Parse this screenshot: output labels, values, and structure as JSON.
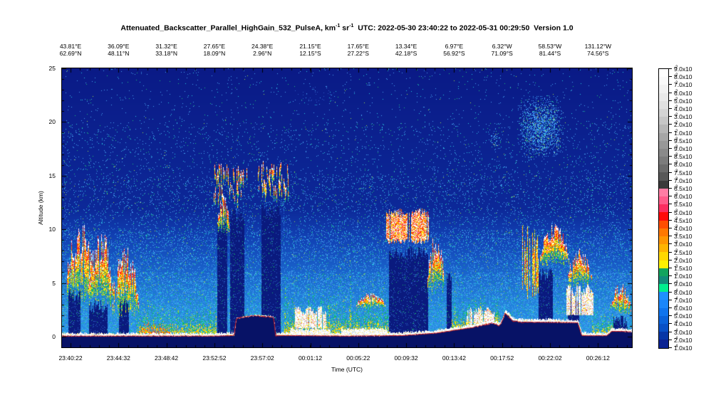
{
  "header": {
    "product": "Attenuated_Backscatter_Parallel_HighGain_532_PulseA, km",
    "exp1": "-1",
    "unit2": " sr",
    "exp2": "-1",
    "range": "  UTC: 2022-05-30 23:40:22 to 2022-05-31 00:29:50  Version 1.0"
  },
  "chart_data": {
    "type": "heatmap",
    "title": "Attenuated_Backscatter_Parallel_HighGain_532_PulseA, km-1 sr-1",
    "utc_range": "UTC: 2022-05-30 23:40:22 to 2022-05-31 00:29:50",
    "version": "Version 1.0",
    "xlabel": "Time (UTC)",
    "ylabel": "Altitude (km)",
    "alt_range_km": [
      -1,
      25
    ],
    "y_ticks": [
      0,
      5,
      10,
      15,
      20,
      25
    ],
    "x_ticks": [
      "23:40:22",
      "23:44:32",
      "23:48:42",
      "23:52:52",
      "23:57:02",
      "00:01:12",
      "00:05:22",
      "00:09:32",
      "00:13:42",
      "00:17:52",
      "00:22:02",
      "00:26:12"
    ],
    "top_axis": {
      "lon": [
        "43.81°E",
        "36.09°E",
        "31.32°E",
        "27.65°E",
        "24.38°E",
        "21.15°E",
        "17.65°E",
        "13.34°E",
        "6.97°E",
        "6.32°W",
        "58.53°W",
        "131.12°W"
      ],
      "lat": [
        "62.69°N",
        "48.11°N",
        "33.18°N",
        "18.09°N",
        "2.96°N",
        "12.15°S",
        "27.22°S",
        "42.18°S",
        "56.92°S",
        "71.09°S",
        "81.44°S",
        "74.56°S"
      ]
    },
    "colorbar": {
      "labels": [
        [
          "9.0x10",
          "-2"
        ],
        [
          "8.0x10",
          "-2"
        ],
        [
          "7.0x10",
          "-2"
        ],
        [
          "6.0x10",
          "-2"
        ],
        [
          "5.0x10",
          "-2"
        ],
        [
          "4.0x10",
          "-2"
        ],
        [
          "3.0x10",
          "-2"
        ],
        [
          "2.0x10",
          "-2"
        ],
        [
          "1.0x10",
          "-2"
        ],
        [
          "9.5x10",
          "-3"
        ],
        [
          "9.0x10",
          "-3"
        ],
        [
          "8.5x10",
          "-3"
        ],
        [
          "8.0x10",
          "-3"
        ],
        [
          "7.5x10",
          "-3"
        ],
        [
          "7.0x10",
          "-3"
        ],
        [
          "6.5x10",
          "-3"
        ],
        [
          "6.0x10",
          "-3"
        ],
        [
          "5.5x10",
          "-3"
        ],
        [
          "5.0x10",
          "-3"
        ],
        [
          "4.5x10",
          "-3"
        ],
        [
          "4.0x10",
          "-3"
        ],
        [
          "3.5x10",
          "-3"
        ],
        [
          "3.0x10",
          "-3"
        ],
        [
          "2.5x10",
          "-3"
        ],
        [
          "2.0x10",
          "-3"
        ],
        [
          "1.5x10",
          "-3"
        ],
        [
          "1.0x10",
          "-3"
        ],
        [
          "9.0x10",
          "-4"
        ],
        [
          "8.0x10",
          "-4"
        ],
        [
          "7.0x10",
          "-4"
        ],
        [
          "6.0x10",
          "-4"
        ],
        [
          "5.0x10",
          "-4"
        ],
        [
          "4.0x10",
          "-4"
        ],
        [
          "3.0x10",
          "-4"
        ],
        [
          "2.0x10",
          "-4"
        ],
        [
          "1.0x10",
          "-4"
        ]
      ],
      "colors": [
        "#ffffff",
        "#fafafa",
        "#f2f2f2",
        "#eaeaea",
        "#e0e0e0",
        "#d4d4d4",
        "#c6c6c6",
        "#b6b6b6",
        "#a6a6a6",
        "#989898",
        "#8a8a8a",
        "#7c7c7c",
        "#6c6c6c",
        "#585858",
        "#3a3a3a",
        "#ff7da4",
        "#ff5c8a",
        "#fb2e60",
        "#ff0a0a",
        "#ff4e00",
        "#ff7800",
        "#ff9600",
        "#ffb400",
        "#ffd800",
        "#fff200",
        "#12a45e",
        "#128c7a",
        "#00ee8e",
        "#1e90ff",
        "#1a86fa",
        "#0f74ee",
        "#0a62da",
        "#0850c6",
        "#0636a6",
        "#0a2292"
      ]
    },
    "background_stops": [
      [
        25,
        "#0a1a86"
      ],
      [
        12,
        "#0c2898"
      ],
      [
        9,
        "#1244b6"
      ],
      [
        6,
        "#1a64cc"
      ],
      [
        3,
        "#2282dc"
      ],
      [
        0,
        "#2a92e6"
      ],
      [
        -1,
        "#2a92e6"
      ]
    ],
    "features": [
      {
        "kind": "faint",
        "x": [
          0.4,
          0.5
        ],
        "alt": [
          21.5,
          23.5
        ]
      },
      {
        "kind": "psc",
        "x": [
          0.748,
          0.772
        ],
        "alt": [
          17.3,
          19.6
        ],
        "faint": true
      },
      {
        "kind": "psc",
        "x": [
          0.798,
          0.882
        ],
        "alt": [
          16.5,
          22.6
        ]
      },
      {
        "kind": "cell",
        "x": [
          0.006,
          0.062
        ],
        "alt": [
          3.2,
          10.8
        ]
      },
      {
        "kind": "cell",
        "x": [
          0.045,
          0.09
        ],
        "alt": [
          2.8,
          10.4
        ]
      },
      {
        "kind": "cell",
        "x": [
          0.088,
          0.135
        ],
        "alt": [
          1.8,
          8.6
        ]
      },
      {
        "kind": "aerosol",
        "x": [
          0.132,
          0.272
        ],
        "alt": [
          0.0,
          3.2
        ],
        "hot": [
          0.135,
          0.19
        ]
      },
      {
        "kind": "cirrus",
        "x": [
          0.266,
          0.326
        ],
        "alt": [
          12.2,
          16.3
        ]
      },
      {
        "kind": "cell",
        "x": [
          0.272,
          0.295
        ],
        "alt": [
          9.6,
          13.2
        ]
      },
      {
        "kind": "cirrus",
        "x": [
          0.344,
          0.397
        ],
        "alt": [
          12.8,
          16.4
        ]
      },
      {
        "kind": "aerosol",
        "x": [
          0.39,
          0.575
        ],
        "alt": [
          0.0,
          4.2
        ]
      },
      {
        "kind": "lowwhite",
        "x": [
          0.408,
          0.463
        ],
        "alt": [
          0.8,
          2.8
        ]
      },
      {
        "kind": "cell",
        "x": [
          0.515,
          0.568
        ],
        "alt": [
          2.6,
          4.1
        ]
      },
      {
        "kind": "convective",
        "x": [
          0.57,
          0.643
        ],
        "alt": [
          8.6,
          11.9
        ]
      },
      {
        "kind": "cell",
        "x": [
          0.641,
          0.672
        ],
        "alt": [
          4.0,
          9.6
        ]
      },
      {
        "kind": "aerosol",
        "x": [
          0.675,
          0.77
        ],
        "alt": [
          0.0,
          4.0
        ]
      },
      {
        "kind": "lowwhite",
        "x": [
          0.71,
          0.758
        ],
        "alt": [
          0.5,
          2.7
        ]
      },
      {
        "kind": "towers",
        "x": [
          0.806,
          0.84
        ],
        "alt": [
          3.5,
          10.6
        ]
      },
      {
        "kind": "cell",
        "x": [
          0.838,
          0.89
        ],
        "alt": [
          6.5,
          10.6
        ]
      },
      {
        "kind": "cell",
        "x": [
          0.885,
          0.932
        ],
        "alt": [
          4.5,
          8.2
        ]
      },
      {
        "kind": "lowwhite",
        "x": [
          0.885,
          0.932
        ],
        "alt": [
          2.0,
          4.8
        ]
      },
      {
        "kind": "aerosol",
        "x": [
          0.93,
          0.97
        ],
        "alt": [
          0.0,
          2.5
        ]
      },
      {
        "kind": "cell",
        "x": [
          0.962,
          0.999
        ],
        "alt": [
          2.0,
          5.1
        ]
      }
    ],
    "attenuation": [
      {
        "x": [
          0.012,
          0.033
        ],
        "top": 4.5
      },
      {
        "x": [
          0.048,
          0.08
        ],
        "top": 3.4
      },
      {
        "x": [
          0.1,
          0.117
        ],
        "top": 4.0
      },
      {
        "x": [
          0.273,
          0.29
        ],
        "top": 11.0
      },
      {
        "x": [
          0.295,
          0.32
        ],
        "top": 12.0
      },
      {
        "x": [
          0.35,
          0.383
        ],
        "top": 12.4
      },
      {
        "x": [
          0.574,
          0.642
        ],
        "top": 8.4
      },
      {
        "x": [
          0.676,
          0.684
        ],
        "top": 6.0
      },
      {
        "x": [
          0.837,
          0.862
        ],
        "top": 6.4
      },
      {
        "x": [
          0.888,
          0.908
        ],
        "top": 4.4
      },
      {
        "x": [
          0.968,
          0.993
        ],
        "top": 2.0
      }
    ],
    "surface_profile": [
      [
        0,
        0.05
      ],
      [
        0.27,
        0.05
      ],
      [
        0.302,
        0.1
      ],
      [
        0.306,
        1.7
      ],
      [
        0.34,
        1.95
      ],
      [
        0.371,
        1.8
      ],
      [
        0.375,
        0.1
      ],
      [
        0.5,
        0.05
      ],
      [
        0.6,
        0.1
      ],
      [
        0.66,
        0.35
      ],
      [
        0.72,
        0.85
      ],
      [
        0.755,
        1.25
      ],
      [
        0.768,
        1.0
      ],
      [
        0.778,
        2.2
      ],
      [
        0.79,
        1.5
      ],
      [
        0.807,
        1.35
      ],
      [
        0.905,
        1.3
      ],
      [
        0.912,
        0.08
      ],
      [
        0.955,
        0.08
      ],
      [
        0.965,
        0.5
      ],
      [
        1,
        0.45
      ]
    ],
    "surface_bright": [
      [
        0.4,
        0.47
      ],
      [
        0.49,
        0.57
      ]
    ],
    "surface_dark": [
      [
        0.306,
        0.375
      ]
    ],
    "surface_rough": [
      [
        0.3,
        0.38
      ],
      [
        0.72,
        0.81
      ]
    ],
    "surface_line_color": "#d42020"
  }
}
